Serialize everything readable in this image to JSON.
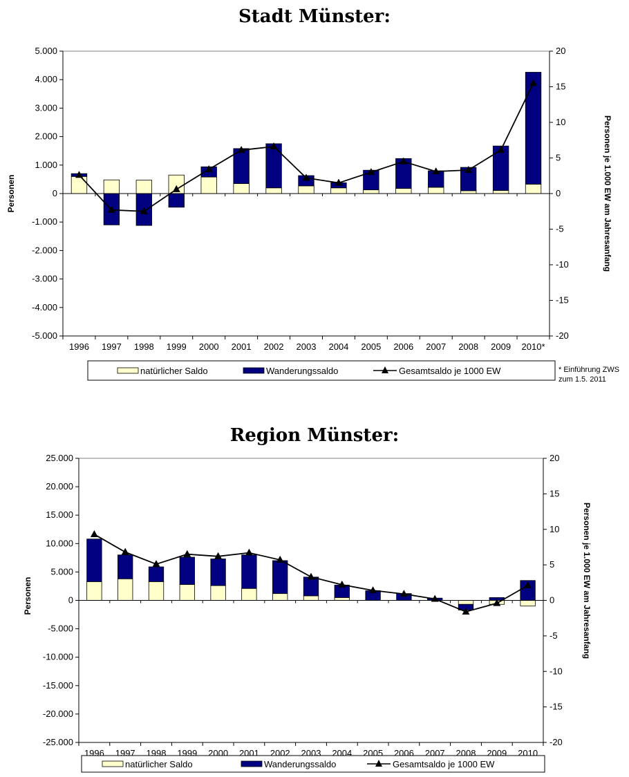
{
  "chart_data": [
    {
      "type": "bar",
      "stacked": true,
      "title": "Stadt Münster:",
      "ylabel": "Personen",
      "y2label": "Personen je 1.000 EW am Jahresanfang",
      "categories": [
        "1996",
        "1997",
        "1998",
        "1999",
        "2000",
        "2001",
        "2002",
        "2003",
        "2004",
        "2005",
        "2006",
        "2007",
        "2008",
        "2009",
        "2010*"
      ],
      "ylim": [
        -5000,
        5000
      ],
      "yticks": [
        "5.000",
        "4.000",
        "3.000",
        "2.000",
        "1.000",
        "0",
        "-1.000",
        "-2.000",
        "-3.000",
        "-4.000",
        "-5.000"
      ],
      "y2lim": [
        -20,
        20
      ],
      "y2ticks": [
        "20",
        "15",
        "10",
        "5",
        "0",
        "-5",
        "-10",
        "-15",
        "-20"
      ],
      "series": [
        {
          "name": "natürlicher Saldo",
          "kind": "bar",
          "color": "#ffffcc",
          "values": [
            600,
            480,
            470,
            650,
            580,
            350,
            200,
            270,
            200,
            130,
            180,
            220,
            100,
            110,
            330
          ]
        },
        {
          "name": "Wanderungssaldo",
          "kind": "bar",
          "color": "#000080",
          "values": [
            100,
            -1100,
            -1120,
            -480,
            360,
            1230,
            1550,
            360,
            180,
            690,
            1050,
            580,
            820,
            1560,
            3930
          ]
        },
        {
          "name": "Gesamtsaldo je 1000 EW",
          "kind": "line",
          "axis": "right",
          "color": "#000000",
          "values": [
            2.6,
            -2.3,
            -2.5,
            0.6,
            3.4,
            6.1,
            6.6,
            2.2,
            1.5,
            3.0,
            4.5,
            3.1,
            3.3,
            6.1,
            15.5
          ]
        }
      ],
      "legend": [
        "natürlicher Saldo",
        "Wanderungssaldo",
        "Gesamtsaldo je 1000 EW"
      ],
      "legend_position": "bottom",
      "footnote": [
        "* Einführung ZWS",
        "zum 1.5. 2011"
      ]
    },
    {
      "type": "bar",
      "stacked": true,
      "title": "Region Münster:",
      "ylabel": "Personen",
      "y2label": "Personen je 1.000 EW am Jahresanfang",
      "categories": [
        "1996",
        "1997",
        "1998",
        "1999",
        "2000",
        "2001",
        "2002",
        "2003",
        "2004",
        "2005",
        "2006",
        "2007",
        "2008",
        "2009",
        "2010"
      ],
      "ylim": [
        -25000,
        25000
      ],
      "yticks": [
        "25.000",
        "20.000",
        "15.000",
        "10.000",
        "5.000",
        "0",
        "-5.000",
        "-10.000",
        "-15.000",
        "-20.000",
        "-25.000"
      ],
      "y2lim": [
        -20,
        20
      ],
      "y2ticks": [
        "20",
        "15",
        "10",
        "5",
        "0",
        "-5",
        "-10",
        "-15",
        "-20"
      ],
      "series": [
        {
          "name": "natürlicher Saldo",
          "kind": "bar",
          "color": "#ffffcc",
          "values": [
            3300,
            3800,
            3300,
            2800,
            2600,
            2100,
            1200,
            800,
            500,
            0,
            0,
            0,
            -700,
            -700,
            -1000
          ]
        },
        {
          "name": "Wanderungssaldo",
          "kind": "bar",
          "color": "#000080",
          "values": [
            7500,
            4200,
            2600,
            4800,
            4700,
            5900,
            5800,
            3300,
            2200,
            1700,
            1200,
            400,
            -1000,
            500,
            3500
          ]
        },
        {
          "name": "Gesamtsaldo je 1000 EW",
          "kind": "line",
          "axis": "right",
          "color": "#000000",
          "values": [
            9.3,
            6.8,
            5.1,
            6.5,
            6.2,
            6.7,
            5.7,
            3.3,
            2.2,
            1.4,
            0.9,
            0.2,
            -1.6,
            -0.4,
            2.1
          ]
        }
      ],
      "legend": [
        "natürlicher Saldo",
        "Wanderungssaldo",
        "Gesamtsaldo je 1000 EW"
      ],
      "legend_position": "bottom"
    }
  ]
}
